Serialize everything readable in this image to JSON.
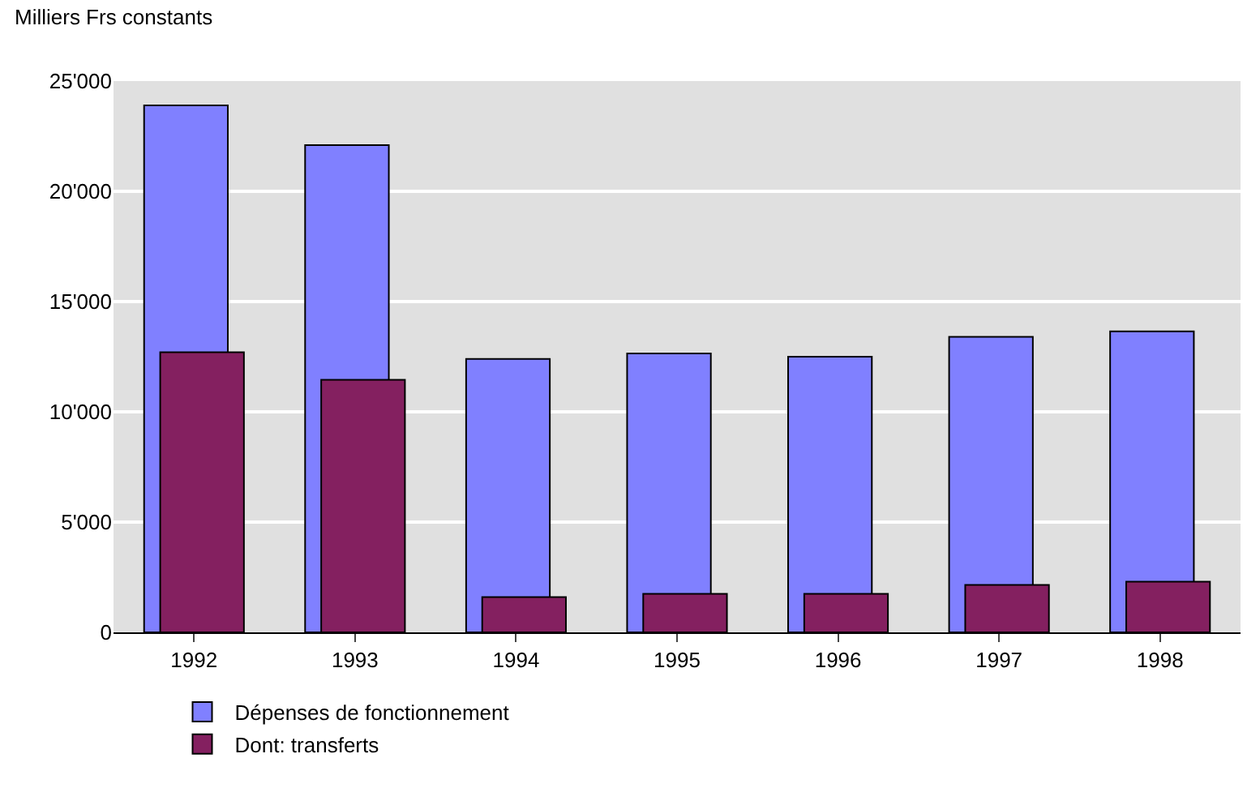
{
  "chart_data": {
    "type": "bar",
    "ylabel": "Milliers Frs constants",
    "categories": [
      "1992",
      "1993",
      "1994",
      "1995",
      "1996",
      "1997",
      "1998"
    ],
    "series": [
      {
        "name": "Dépenses de fonctionnement",
        "color": "#8080ff",
        "values": [
          23900,
          22100,
          12400,
          12650,
          12500,
          13400,
          13650
        ]
      },
      {
        "name": "Dont: transferts",
        "color": "#842060",
        "values": [
          12700,
          11450,
          1600,
          1750,
          1750,
          2150,
          2300
        ]
      }
    ],
    "ylim": [
      0,
      25000
    ],
    "yticks": [
      {
        "value": 0,
        "label": "0"
      },
      {
        "value": 5000,
        "label": "5'000"
      },
      {
        "value": 10000,
        "label": "10'000"
      },
      {
        "value": 15000,
        "label": "15'000"
      },
      {
        "value": 20000,
        "label": "20'000"
      },
      {
        "value": 25000,
        "label": "25'000"
      }
    ],
    "grid": "y",
    "legend": "bottom"
  }
}
